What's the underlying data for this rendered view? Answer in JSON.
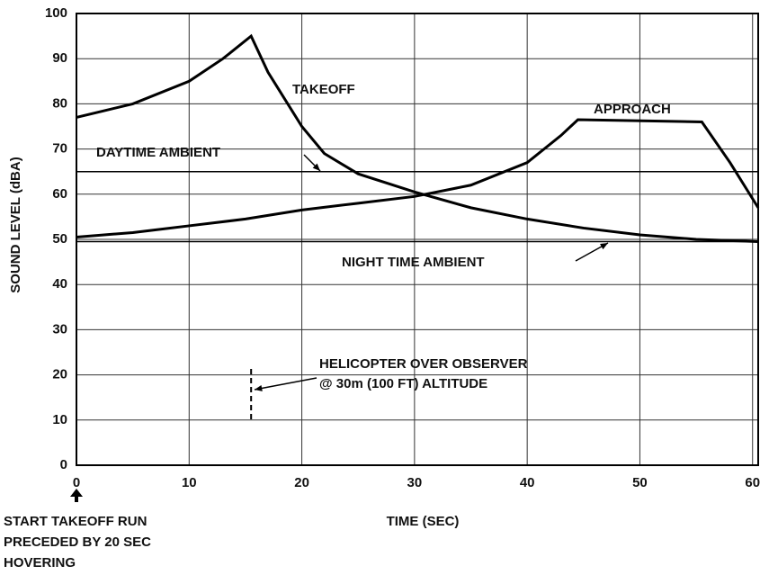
{
  "chart_data": {
    "type": "line",
    "xlabel": "TIME (SEC)",
    "ylabel": "SOUND LEVEL (dBA)",
    "xlim": [
      0,
      60.5
    ],
    "xticks": [
      0,
      10,
      20,
      30,
      40,
      50,
      60
    ],
    "ylim": [
      0,
      100
    ],
    "yticks": [
      0,
      10,
      20,
      30,
      40,
      50,
      60,
      70,
      80,
      90,
      100
    ],
    "grid": true,
    "series": [
      {
        "name": "TAKEOFF",
        "color": "#000000",
        "x": [
          0,
          5,
          10,
          13,
          15.5,
          17,
          20,
          22,
          25,
          30,
          35,
          40,
          45,
          50,
          55,
          60.5
        ],
        "values": [
          77,
          80,
          85,
          90,
          95,
          87,
          75,
          69,
          64.5,
          60.5,
          57,
          54.5,
          52.5,
          51,
          50,
          49.5
        ]
      },
      {
        "name": "APPROACH",
        "color": "#000000",
        "x": [
          0,
          5,
          10,
          15,
          20,
          25,
          30,
          35,
          40,
          43,
          44.5,
          55.5,
          58,
          60.5
        ],
        "values": [
          50.5,
          51.5,
          53,
          54.5,
          56.5,
          58,
          59.5,
          62,
          67,
          73,
          76.5,
          76,
          67,
          57
        ]
      },
      {
        "name": "DAYTIME AMBIENT",
        "color": "#000000",
        "x": [
          0,
          60.5
        ],
        "values": [
          65,
          65
        ]
      },
      {
        "name": "NIGHT TIME AMBIENT",
        "color": "#000000",
        "x": [
          0,
          60.5
        ],
        "values": [
          49.5,
          49.5
        ]
      }
    ],
    "annotations": [
      {
        "text": [
          "HELICOPTER OVER OBSERVER",
          "@ 30m (100 FT) ALTITUDE"
        ],
        "x": 15.5
      },
      {
        "text": [
          "START TAKEOFF RUN",
          "PRECEDED BY 20 SEC",
          "HOVERING"
        ],
        "x": 0
      }
    ]
  }
}
